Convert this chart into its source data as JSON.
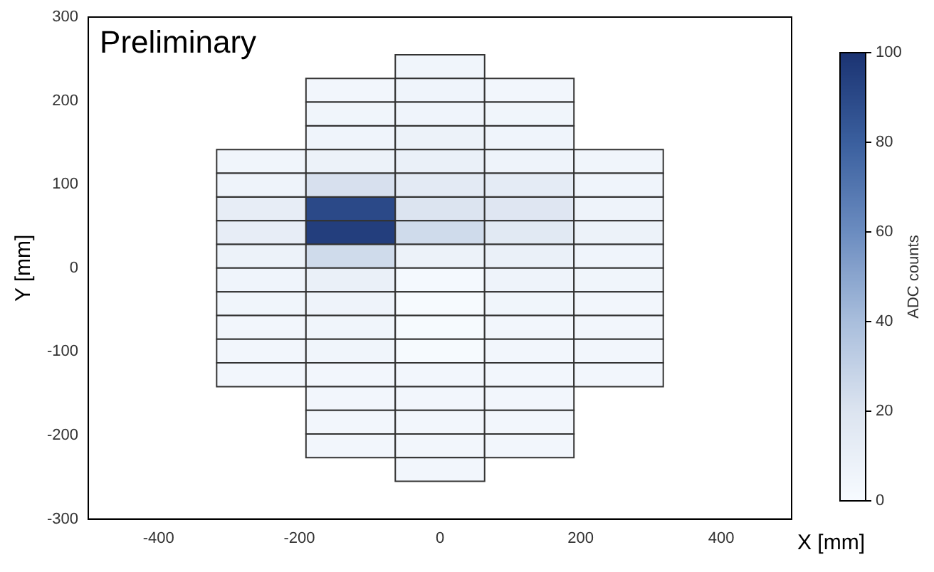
{
  "chart_data": {
    "type": "heatmap",
    "xlabel": "X [mm]",
    "ylabel": "Y [mm]",
    "clabel": "ADC counts",
    "annotations": [
      "Preliminary"
    ],
    "x": [
      -254,
      -127,
      0,
      127,
      254
    ],
    "y": [
      240.8,
      212.5,
      184.2,
      155.8,
      127.5,
      99.2,
      70.8,
      42.5,
      14.2,
      -14.2,
      -42.5,
      -70.8,
      -99.2,
      -127.5,
      -155.8,
      -184.2,
      -212.5,
      -240.8
    ],
    "cells": [
      [
        null,
        null,
        5,
        null,
        null
      ],
      [
        null,
        4,
        6,
        4,
        null
      ],
      [
        null,
        5,
        6,
        5,
        null
      ],
      [
        null,
        6,
        8,
        6,
        null
      ],
      [
        5,
        8,
        10,
        7,
        5
      ],
      [
        7,
        22,
        15,
        14,
        6
      ],
      [
        12,
        90,
        20,
        18,
        7
      ],
      [
        12,
        95,
        25,
        16,
        8
      ],
      [
        8,
        25,
        8,
        10,
        6
      ],
      [
        6,
        10,
        2,
        7,
        5
      ],
      [
        5,
        7,
        1,
        5,
        4
      ],
      [
        4,
        5,
        1,
        4,
        4
      ],
      [
        4,
        5,
        1,
        4,
        4
      ],
      [
        4,
        4,
        4,
        4,
        4
      ],
      [
        null,
        4,
        4,
        4,
        null
      ],
      [
        null,
        4,
        4,
        4,
        null
      ],
      [
        null,
        4,
        4,
        4,
        null
      ],
      [
        null,
        null,
        4,
        null,
        null
      ]
    ],
    "colors": [
      "#f7fbff",
      "#dce4f0",
      "#a9bedc",
      "#6b8cc0",
      "#3a5f9e",
      "#1b3372"
    ],
    "clim": [
      0,
      100
    ],
    "cticks": [
      0,
      20,
      40,
      60,
      80,
      100
    ],
    "xlim": [
      -500,
      500
    ],
    "xticks": [
      -400,
      -200,
      0,
      200,
      400
    ],
    "ylim": [
      -300,
      300
    ],
    "yticks": [
      -300,
      -200,
      -100,
      0,
      100,
      200,
      300
    ]
  }
}
